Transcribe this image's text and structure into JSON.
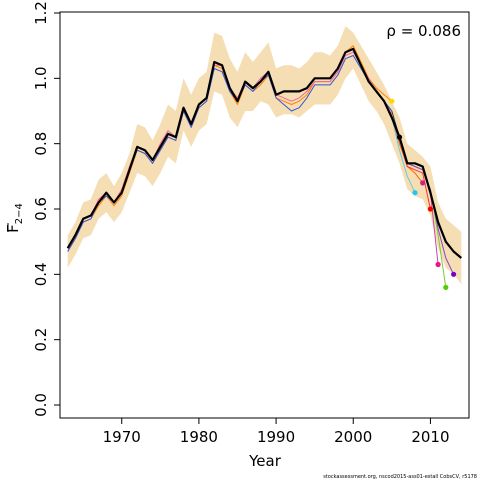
{
  "chart_data": {
    "type": "line",
    "title": "",
    "xlabel": "Year",
    "ylabel": "F",
    "ylabel_subscript": "2−4",
    "xlim": [
      1962,
      2015
    ],
    "ylim": [
      0,
      1.2
    ],
    "x_ticks": [
      1970,
      1980,
      1990,
      2000,
      2010
    ],
    "y_ticks": [
      0.0,
      0.2,
      0.4,
      0.6,
      0.8,
      1.0,
      1.2
    ],
    "x_tick_labels": [
      "1970",
      "1980",
      "1990",
      "2000",
      "2010"
    ],
    "y_tick_labels": [
      "0.0",
      "0.2",
      "0.4",
      "0.6",
      "0.8",
      "1.0",
      "1.2"
    ],
    "grid": false,
    "annotation": "ρ = 0.086",
    "footer": "stockassessment.org, nscod2015-ass01-estall CobsCV, r5178",
    "band_color": "#f5deb3",
    "band": {
      "x": [
        1963,
        1964,
        1965,
        1966,
        1967,
        1968,
        1969,
        1970,
        1971,
        1972,
        1973,
        1974,
        1975,
        1976,
        1977,
        1978,
        1979,
        1980,
        1981,
        1982,
        1983,
        1984,
        1985,
        1986,
        1987,
        1988,
        1989,
        1990,
        1991,
        1992,
        1993,
        1994,
        1995,
        1996,
        1997,
        1998,
        1999,
        2000,
        2001,
        2002,
        2003,
        2004,
        2005,
        2006,
        2007,
        2008,
        2009,
        2010,
        2011,
        2012,
        2013,
        2014
      ],
      "lower": [
        0.42,
        0.46,
        0.51,
        0.52,
        0.57,
        0.59,
        0.56,
        0.59,
        0.65,
        0.71,
        0.7,
        0.67,
        0.71,
        0.76,
        0.74,
        0.84,
        0.79,
        0.84,
        0.86,
        0.96,
        0.95,
        0.88,
        0.85,
        0.9,
        0.9,
        0.93,
        0.92,
        0.88,
        0.89,
        0.89,
        0.88,
        0.9,
        0.92,
        0.92,
        0.92,
        0.95,
        1.0,
        1.03,
        0.98,
        0.93,
        0.9,
        0.86,
        0.8,
        0.74,
        0.66,
        0.64,
        0.63,
        0.58,
        0.48,
        0.42,
        0.4,
        0.37
      ],
      "upper": [
        0.52,
        0.56,
        0.62,
        0.63,
        0.69,
        0.71,
        0.67,
        0.71,
        0.77,
        0.86,
        0.85,
        0.81,
        0.86,
        0.92,
        0.9,
        1.0,
        0.95,
        1.0,
        1.02,
        1.14,
        1.13,
        1.06,
        1.02,
        1.08,
        1.05,
        1.08,
        1.11,
        1.03,
        1.04,
        1.04,
        1.03,
        1.05,
        1.08,
        1.08,
        1.07,
        1.1,
        1.16,
        1.14,
        1.1,
        1.06,
        1.02,
        0.98,
        0.93,
        0.88,
        0.8,
        0.78,
        0.76,
        0.73,
        0.62,
        0.57,
        0.55,
        0.53
      ]
    },
    "series": [
      {
        "color": "#000000",
        "width": 2.2,
        "x": [
          1963,
          1964,
          1965,
          1966,
          1967,
          1968,
          1969,
          1970,
          1971,
          1972,
          1973,
          1974,
          1975,
          1976,
          1977,
          1978,
          1979,
          1980,
          1981,
          1982,
          1983,
          1984,
          1985,
          1986,
          1987,
          1988,
          1989,
          1990,
          1991,
          1992,
          1993,
          1994,
          1995,
          1996,
          1997,
          1998,
          1999,
          2000,
          2001,
          2002,
          2003,
          2004,
          2005,
          2006,
          2007,
          2008,
          2009,
          2010,
          2011,
          2012,
          2013,
          2014
        ],
        "y": [
          0.48,
          0.52,
          0.57,
          0.58,
          0.62,
          0.65,
          0.62,
          0.65,
          0.72,
          0.79,
          0.78,
          0.75,
          0.79,
          0.83,
          0.82,
          0.91,
          0.86,
          0.92,
          0.94,
          1.05,
          1.04,
          0.97,
          0.93,
          0.99,
          0.97,
          0.99,
          1.02,
          0.95,
          0.96,
          0.96,
          0.96,
          0.97,
          1.0,
          1.0,
          1.0,
          1.03,
          1.08,
          1.09,
          1.04,
          0.99,
          0.96,
          0.93,
          0.88,
          0.82,
          0.74,
          0.74,
          0.73,
          0.65,
          0.56,
          0.5,
          0.47,
          0.45
        ]
      },
      {
        "color": "#ff7f00",
        "width": 1.0,
        "x": [
          1963,
          1964,
          1965,
          1966,
          1967,
          1968,
          1969,
          1970,
          1971,
          1972,
          1973,
          1974,
          1975,
          1976,
          1977,
          1978,
          1979,
          1980,
          1981,
          1982,
          1983,
          1984,
          1985,
          1986,
          1987,
          1988,
          1989,
          1990,
          1991,
          1992,
          1993,
          1994,
          1995,
          1996,
          1997,
          1998,
          1999,
          2000,
          2001,
          2002,
          2003,
          2004,
          2005
        ],
        "y": [
          0.47,
          0.51,
          0.56,
          0.57,
          0.61,
          0.64,
          0.61,
          0.64,
          0.71,
          0.78,
          0.77,
          0.74,
          0.78,
          0.82,
          0.81,
          0.9,
          0.85,
          0.91,
          0.93,
          1.04,
          1.03,
          0.96,
          0.92,
          0.98,
          0.96,
          0.98,
          1.01,
          0.94,
          0.93,
          0.92,
          0.93,
          0.95,
          0.99,
          0.99,
          0.99,
          1.02,
          1.08,
          1.1,
          1.05,
          1.0,
          0.97,
          0.95,
          0.93
        ],
        "marker": {
          "x": 2005,
          "y": 0.93,
          "color": "#ffd700"
        }
      },
      {
        "color": "#333333",
        "width": 1.0,
        "x": [
          2001,
          2002,
          2003,
          2004,
          2005,
          2006
        ],
        "y": [
          1.04,
          0.99,
          0.96,
          0.93,
          0.9,
          0.82
        ],
        "marker": {
          "x": 2006,
          "y": 0.82,
          "color": "#000000"
        }
      },
      {
        "color": "#66ccdd",
        "width": 1.0,
        "x": [
          2001,
          2002,
          2003,
          2004,
          2005,
          2006,
          2007,
          2008
        ],
        "y": [
          1.04,
          0.99,
          0.96,
          0.93,
          0.88,
          0.78,
          0.7,
          0.65
        ],
        "marker": {
          "x": 2008,
          "y": 0.65,
          "color": "#1ec8ee"
        }
      },
      {
        "color": "#ff6600",
        "width": 1.0,
        "x": [
          2001,
          2002,
          2003,
          2004,
          2005,
          2006,
          2007,
          2008,
          2009
        ],
        "y": [
          1.04,
          0.99,
          0.96,
          0.93,
          0.88,
          0.8,
          0.73,
          0.71,
          0.68
        ],
        "marker": {
          "x": 2009,
          "y": 0.68,
          "color": "#cc2288"
        }
      },
      {
        "color": "#ff3333",
        "width": 1.0,
        "x": [
          2001,
          2002,
          2003,
          2004,
          2005,
          2006,
          2007,
          2008,
          2009,
          2010
        ],
        "y": [
          1.04,
          0.99,
          0.96,
          0.93,
          0.88,
          0.81,
          0.73,
          0.72,
          0.71,
          0.6
        ],
        "marker": {
          "x": 2010,
          "y": 0.6,
          "color": "#ff0000"
        }
      },
      {
        "color": "#cc44aa",
        "width": 1.0,
        "x": [
          2001,
          2002,
          2003,
          2004,
          2005,
          2006,
          2007,
          2008,
          2009,
          2010,
          2011
        ],
        "y": [
          1.04,
          0.99,
          0.96,
          0.93,
          0.88,
          0.81,
          0.74,
          0.73,
          0.72,
          0.65,
          0.43
        ],
        "marker": {
          "x": 2011,
          "y": 0.43,
          "color": "#ee1188"
        }
      },
      {
        "color": "#77cc33",
        "width": 1.0,
        "x": [
          2001,
          2002,
          2003,
          2004,
          2005,
          2006,
          2007,
          2008,
          2009,
          2010,
          2011,
          2012
        ],
        "y": [
          1.04,
          0.99,
          0.96,
          0.93,
          0.88,
          0.81,
          0.74,
          0.73,
          0.72,
          0.66,
          0.52,
          0.36
        ],
        "marker": {
          "x": 2012,
          "y": 0.36,
          "color": "#55cc00"
        }
      },
      {
        "color": "#8844cc",
        "width": 1.0,
        "x": [
          2001,
          2002,
          2003,
          2004,
          2005,
          2006,
          2007,
          2008,
          2009,
          2010,
          2011,
          2012,
          2013
        ],
        "y": [
          1.04,
          0.99,
          0.96,
          0.93,
          0.88,
          0.81,
          0.74,
          0.73,
          0.72,
          0.66,
          0.54,
          0.45,
          0.4
        ],
        "marker": {
          "x": 2013,
          "y": 0.4,
          "color": "#7700cc"
        }
      },
      {
        "color": "#3355dd",
        "width": 1.0,
        "x": [
          1963,
          1964,
          1965,
          1966,
          1967,
          1968,
          1969,
          1970,
          1971,
          1972,
          1973,
          1974,
          1975,
          1976,
          1977,
          1978,
          1979,
          1980,
          1981,
          1982,
          1983,
          1984,
          1985,
          1986,
          1987,
          1988,
          1989,
          1990,
          1991,
          1992,
          1993,
          1994,
          1995,
          1996,
          1997,
          1998,
          1999,
          2000,
          2001,
          2002,
          2003,
          2004,
          2005
        ],
        "y": [
          0.47,
          0.51,
          0.56,
          0.57,
          0.62,
          0.64,
          0.62,
          0.65,
          0.72,
          0.78,
          0.77,
          0.74,
          0.78,
          0.82,
          0.81,
          0.9,
          0.85,
          0.91,
          0.93,
          1.03,
          1.02,
          0.96,
          0.93,
          0.98,
          0.96,
          0.99,
          1.01,
          0.94,
          0.92,
          0.9,
          0.91,
          0.94,
          0.98,
          0.98,
          0.98,
          1.01,
          1.06,
          1.07,
          1.03,
          0.99,
          0.96,
          0.93,
          0.9
        ]
      },
      {
        "color": "#ee6699",
        "width": 1.0,
        "x": [
          1963,
          1964,
          1965,
          1966,
          1967,
          1968,
          1969,
          1970,
          1971,
          1972,
          1973,
          1974,
          1975,
          1976,
          1977,
          1978,
          1979,
          1980,
          1981,
          1982,
          1983,
          1984,
          1985,
          1986,
          1987,
          1988,
          1989,
          1990,
          1991,
          1992,
          1993,
          1994,
          1995,
          1996,
          1997,
          1998,
          1999,
          2000,
          2001,
          2002,
          2003,
          2004,
          2005
        ],
        "y": [
          0.48,
          0.52,
          0.57,
          0.58,
          0.63,
          0.65,
          0.62,
          0.66,
          0.73,
          0.79,
          0.78,
          0.75,
          0.8,
          0.84,
          0.82,
          0.91,
          0.86,
          0.92,
          0.94,
          1.04,
          1.04,
          0.97,
          0.94,
          0.99,
          0.97,
          1.0,
          1.02,
          0.95,
          0.94,
          0.93,
          0.94,
          0.96,
          0.99,
          0.99,
          0.99,
          1.02,
          1.07,
          1.08,
          1.04,
          1.0,
          0.96,
          0.93,
          0.89
        ]
      }
    ]
  }
}
